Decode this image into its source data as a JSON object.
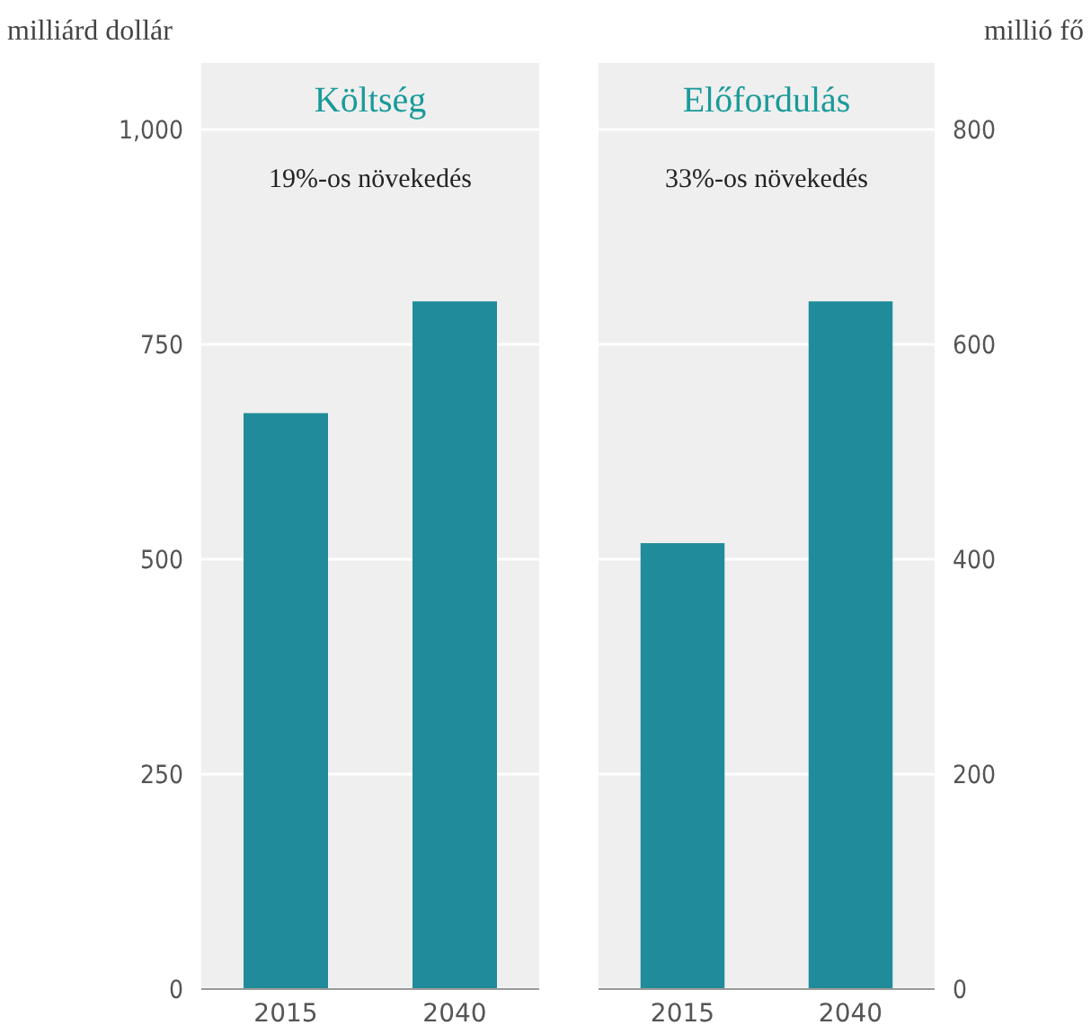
{
  "chart_data": [
    {
      "type": "bar",
      "title": "Költség",
      "ylabel": "milliárd dollár",
      "categories": [
        "2015",
        "2040"
      ],
      "series": [
        {
          "color": "#208b9b",
          "values": [
            670,
            800
          ]
        }
      ],
      "ylim": [
        0,
        1000
      ],
      "yticks": [
        0,
        250,
        500,
        750,
        {
          "value": 1000,
          "label": "1,000"
        }
      ],
      "grid": "y",
      "annotations": [
        "19%-os növekedés"
      ]
    },
    {
      "type": "bar",
      "title": "Előfordulás",
      "y2label": "millió fő",
      "categories": [
        "2015",
        "2040"
      ],
      "series": [
        {
          "color": "#208b9b",
          "axis": "y2",
          "values": [
            415,
            640
          ]
        }
      ],
      "y2lim": [
        0,
        800
      ],
      "y2ticks": [
        0,
        200,
        400,
        600,
        800
      ],
      "grid": "y",
      "annotations": [
        "33%-os növekedés"
      ]
    }
  ]
}
